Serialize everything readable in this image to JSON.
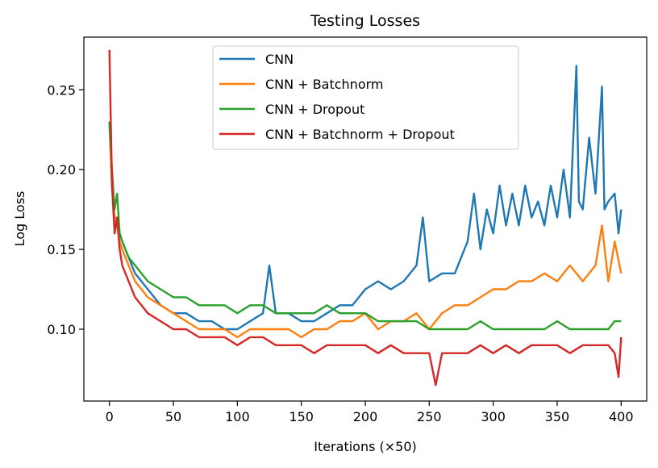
{
  "chart_data": {
    "type": "line",
    "title": "Testing Losses",
    "xlabel": "Iterations (×50)",
    "ylabel": "Log Loss",
    "xlim": [
      -20,
      420
    ],
    "ylim": [
      0.055,
      0.283
    ],
    "xticks": [
      0,
      50,
      100,
      150,
      200,
      250,
      300,
      350,
      400
    ],
    "yticks": [
      0.1,
      0.15,
      0.2,
      0.25
    ],
    "ytick_labels": [
      "0.10",
      "0.15",
      "0.20",
      "0.25"
    ],
    "grid": false,
    "legend_position": "upper center",
    "series": [
      {
        "name": "CNN",
        "color": "#1f77b4",
        "x": [
          0,
          2,
          4,
          6,
          8,
          10,
          15,
          20,
          25,
          30,
          40,
          50,
          60,
          70,
          80,
          90,
          100,
          110,
          120,
          125,
          130,
          140,
          150,
          160,
          170,
          180,
          190,
          200,
          210,
          220,
          230,
          240,
          245,
          250,
          260,
          270,
          280,
          285,
          290,
          295,
          300,
          305,
          310,
          315,
          320,
          325,
          330,
          335,
          340,
          345,
          350,
          355,
          360,
          365,
          367,
          370,
          375,
          380,
          385,
          387,
          390,
          395,
          398,
          400
        ],
        "values": [
          0.23,
          0.19,
          0.17,
          0.165,
          0.16,
          0.155,
          0.145,
          0.135,
          0.13,
          0.125,
          0.115,
          0.11,
          0.11,
          0.105,
          0.105,
          0.1,
          0.1,
          0.105,
          0.11,
          0.14,
          0.11,
          0.11,
          0.105,
          0.105,
          0.11,
          0.115,
          0.115,
          0.125,
          0.13,
          0.125,
          0.13,
          0.14,
          0.17,
          0.13,
          0.135,
          0.135,
          0.155,
          0.185,
          0.15,
          0.175,
          0.16,
          0.19,
          0.165,
          0.185,
          0.165,
          0.19,
          0.17,
          0.18,
          0.165,
          0.19,
          0.17,
          0.2,
          0.17,
          0.265,
          0.18,
          0.175,
          0.22,
          0.185,
          0.252,
          0.175,
          0.18,
          0.185,
          0.16,
          0.175
        ]
      },
      {
        "name": "CNN + Batchnorm",
        "color": "#ff7f0e",
        "x": [
          0,
          2,
          4,
          6,
          8,
          10,
          15,
          20,
          25,
          30,
          40,
          50,
          60,
          70,
          80,
          90,
          100,
          110,
          120,
          130,
          140,
          150,
          160,
          170,
          180,
          190,
          200,
          210,
          220,
          230,
          240,
          250,
          260,
          270,
          280,
          290,
          300,
          310,
          320,
          330,
          340,
          350,
          360,
          370,
          380,
          385,
          390,
          395,
          400
        ],
        "values": [
          0.23,
          0.19,
          0.17,
          0.165,
          0.155,
          0.15,
          0.14,
          0.13,
          0.125,
          0.12,
          0.115,
          0.11,
          0.105,
          0.1,
          0.1,
          0.1,
          0.095,
          0.1,
          0.1,
          0.1,
          0.1,
          0.095,
          0.1,
          0.1,
          0.105,
          0.105,
          0.11,
          0.1,
          0.105,
          0.105,
          0.11,
          0.1,
          0.11,
          0.115,
          0.115,
          0.12,
          0.125,
          0.125,
          0.13,
          0.13,
          0.135,
          0.13,
          0.14,
          0.13,
          0.14,
          0.165,
          0.13,
          0.155,
          0.135
        ]
      },
      {
        "name": "CNN + Dropout",
        "color": "#2ca02c",
        "x": [
          0,
          2,
          4,
          6,
          8,
          10,
          15,
          20,
          25,
          30,
          40,
          50,
          60,
          70,
          80,
          90,
          100,
          110,
          120,
          130,
          140,
          150,
          160,
          170,
          180,
          190,
          200,
          210,
          220,
          230,
          240,
          250,
          260,
          270,
          280,
          290,
          300,
          310,
          320,
          330,
          340,
          350,
          360,
          370,
          380,
          390,
          395,
          400
        ],
        "values": [
          0.23,
          0.2,
          0.175,
          0.185,
          0.16,
          0.155,
          0.145,
          0.14,
          0.135,
          0.13,
          0.125,
          0.12,
          0.12,
          0.115,
          0.115,
          0.115,
          0.11,
          0.115,
          0.115,
          0.11,
          0.11,
          0.11,
          0.11,
          0.115,
          0.11,
          0.11,
          0.11,
          0.105,
          0.105,
          0.105,
          0.105,
          0.1,
          0.1,
          0.1,
          0.1,
          0.105,
          0.1,
          0.1,
          0.1,
          0.1,
          0.1,
          0.105,
          0.1,
          0.1,
          0.1,
          0.1,
          0.105,
          0.105
        ]
      },
      {
        "name": "CNN + Batchnorm + Dropout",
        "color": "#d62728",
        "x": [
          0,
          2,
          4,
          6,
          8,
          10,
          15,
          20,
          25,
          30,
          40,
          50,
          60,
          70,
          80,
          90,
          100,
          110,
          120,
          130,
          140,
          150,
          160,
          170,
          180,
          190,
          200,
          210,
          220,
          230,
          240,
          250,
          255,
          260,
          270,
          280,
          290,
          300,
          310,
          320,
          330,
          340,
          350,
          360,
          370,
          380,
          390,
          395,
          398,
          400
        ],
        "values": [
          0.275,
          0.19,
          0.16,
          0.17,
          0.15,
          0.14,
          0.13,
          0.12,
          0.115,
          0.11,
          0.105,
          0.1,
          0.1,
          0.095,
          0.095,
          0.095,
          0.09,
          0.095,
          0.095,
          0.09,
          0.09,
          0.09,
          0.085,
          0.09,
          0.09,
          0.09,
          0.09,
          0.085,
          0.09,
          0.085,
          0.085,
          0.085,
          0.065,
          0.085,
          0.085,
          0.085,
          0.09,
          0.085,
          0.09,
          0.085,
          0.09,
          0.09,
          0.09,
          0.085,
          0.09,
          0.09,
          0.09,
          0.085,
          0.07,
          0.095
        ]
      }
    ]
  }
}
